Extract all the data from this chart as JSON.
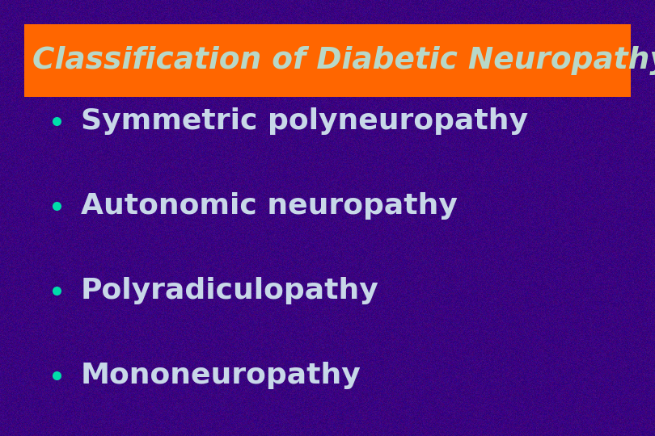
{
  "title": "Classification of Diabetic Neuropathy",
  "title_bg_color": "#FF6600",
  "title_text_color": "#B8D8C8",
  "background_color": "#3A0080",
  "bullet_color": "#00DDAA",
  "text_color": "#C8D8E8",
  "items": [
    "Symmetric polyneuropathy",
    "Autonomic neuropathy",
    "Polyradiculopathy",
    "Mononeuropathy"
  ],
  "fig_width": 8.1,
  "fig_height": 5.4,
  "dpi": 100
}
